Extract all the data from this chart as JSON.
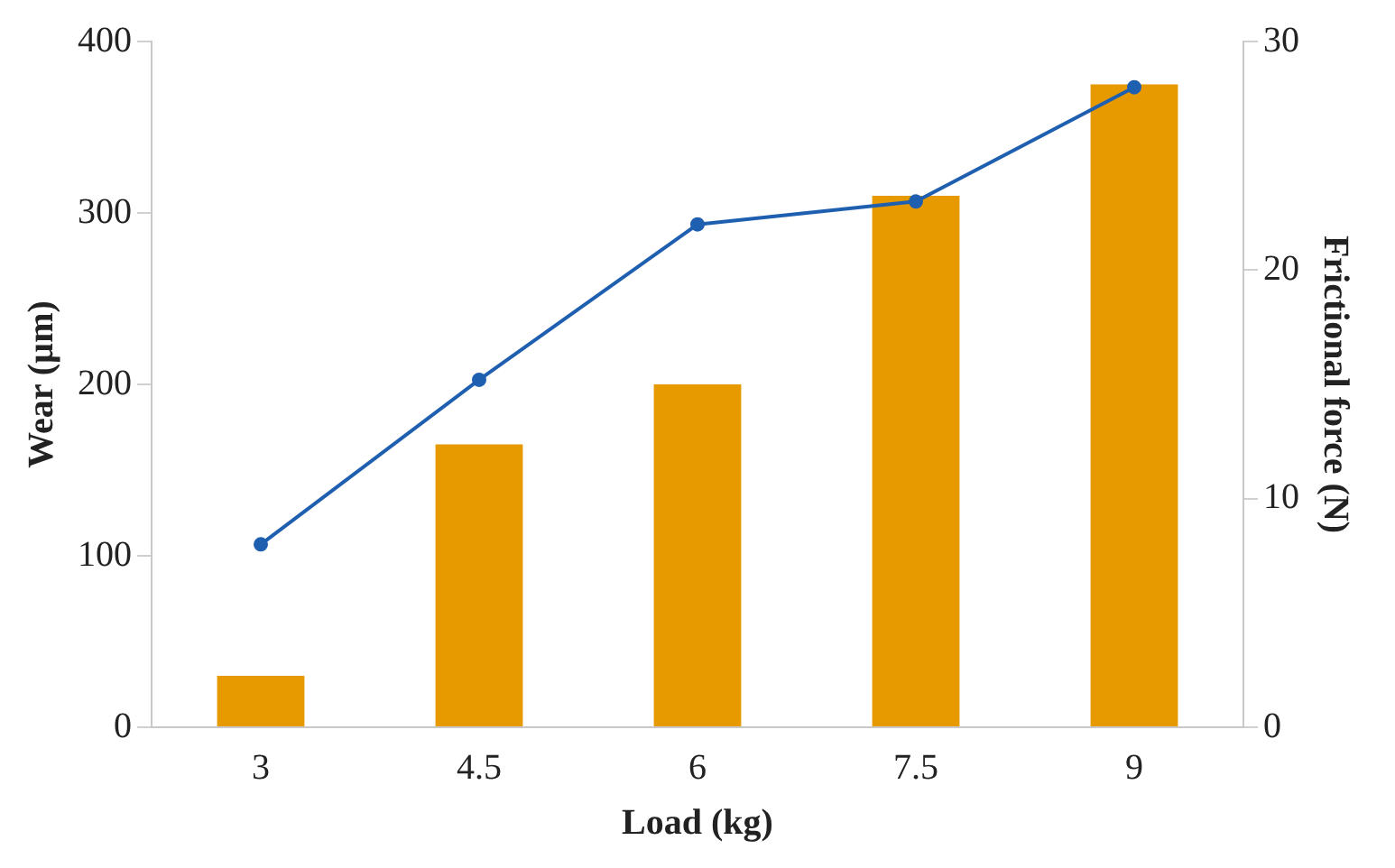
{
  "chart_data": {
    "type": "bar",
    "xlabel": "Load (kg)",
    "ylabel": "Wear (µm)",
    "y2label": "Frictional force (N)",
    "categories": [
      "3",
      "4.5",
      "6",
      "7.5",
      "9"
    ],
    "series": [
      {
        "color": "#e69a00",
        "values": [
          30,
          165,
          200,
          310,
          375
        ]
      },
      {
        "type": "line",
        "axis": "y2",
        "color": "#1f5fb0",
        "values": [
          8,
          15.2,
          22,
          23,
          28
        ]
      }
    ],
    "ylim": [
      0,
      400
    ],
    "yticks": [
      0,
      100,
      200,
      300,
      400
    ],
    "y2lim": [
      0,
      30
    ],
    "y2ticks": [
      0,
      10,
      20,
      30
    ],
    "grid": false,
    "legend": false,
    "marker": "circle"
  }
}
